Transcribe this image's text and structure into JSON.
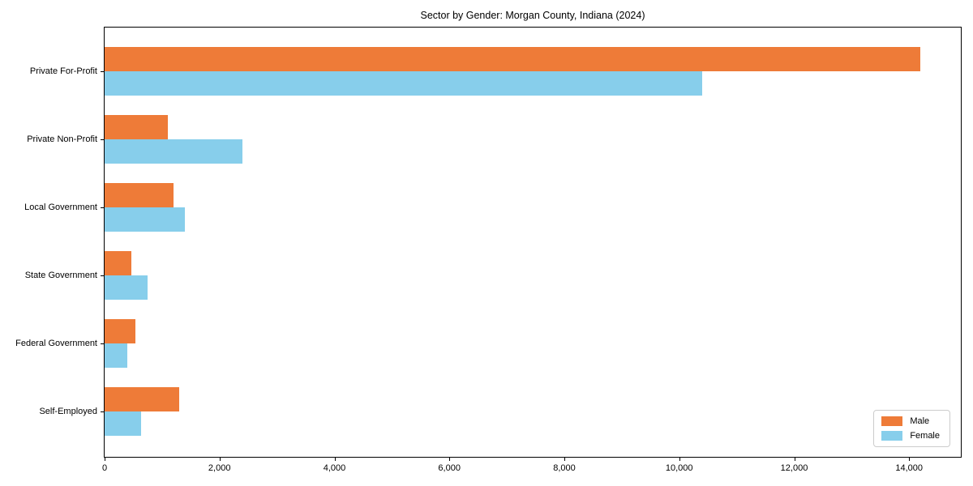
{
  "chart_data": {
    "type": "bar",
    "orientation": "horizontal",
    "title": "Sector by Gender: Morgan County, Indiana (2024)",
    "categories": [
      "Private For-Profit",
      "Private Non-Profit",
      "Local Government",
      "State Government",
      "Federal Government",
      "Self-Employed"
    ],
    "series": [
      {
        "name": "Male",
        "values": [
          14200,
          1100,
          1200,
          460,
          530,
          1300
        ]
      },
      {
        "name": "Female",
        "values": [
          10400,
          2400,
          1400,
          750,
          400,
          630
        ]
      }
    ],
    "colors": [
      "#EE7B38",
      "#87CEEB"
    ],
    "xlabel": "",
    "ylabel": "",
    "xlim": [
      0,
      14900
    ],
    "xticks": [
      0,
      2000,
      4000,
      6000,
      8000,
      10000,
      12000,
      14000
    ],
    "grid": false,
    "legend": {
      "position": "lower right",
      "entries": [
        "Male",
        "Female"
      ]
    }
  }
}
